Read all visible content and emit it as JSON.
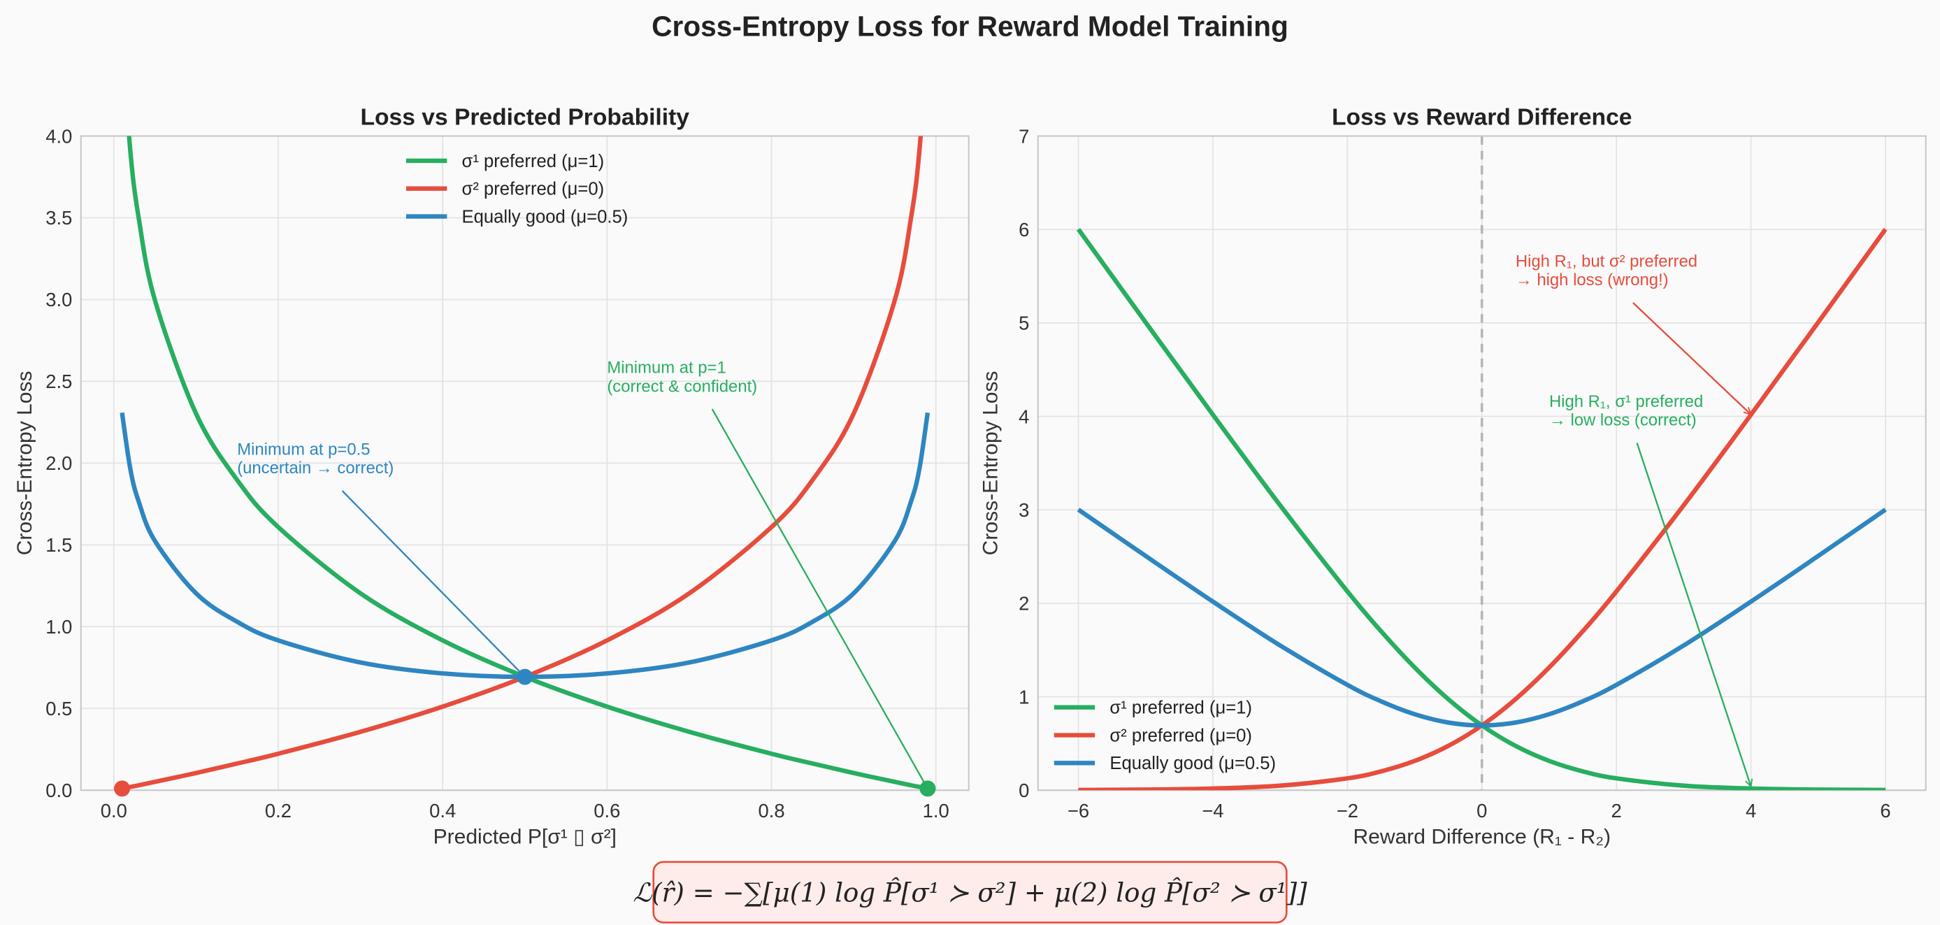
{
  "title": "Cross-Entropy Loss for Reward Model Training",
  "formula": "ℒ(r̂) = −∑[μ(1) log P̂[σ¹ ≻ σ²] + μ(2) log P̂[σ² ≻ σ¹]]",
  "colors": {
    "green": "#27ae60",
    "red": "#e74c3c",
    "blue": "#2e86c1",
    "formula_border": "#e74c3c",
    "formula_bg": "#fdecea"
  },
  "chart_data": [
    {
      "type": "line",
      "title": "Loss vs Predicted Probability",
      "xlabel": "Predicted P[σ¹ ▯ σ²]",
      "ylabel": "Cross-Entropy Loss",
      "xlim": [
        -0.04,
        1.04
      ],
      "ylim": [
        0,
        4
      ],
      "grid": true,
      "legend": "top-center",
      "xticks": [
        "0.0",
        "0.2",
        "0.4",
        "0.6",
        "0.8",
        "1.0"
      ],
      "yticks": [
        "0.0",
        "0.5",
        "1.0",
        "1.5",
        "2.0",
        "2.5",
        "3.0",
        "3.5",
        "4.0"
      ],
      "x": [
        0.01,
        0.02,
        0.03,
        0.05,
        0.1,
        0.15,
        0.2,
        0.3,
        0.4,
        0.5,
        0.6,
        0.7,
        0.8,
        0.85,
        0.9,
        0.95,
        0.97,
        0.98,
        0.99
      ],
      "series": [
        {
          "name": "σ¹ preferred (μ=1)",
          "color": "#27ae60",
          "values": [
            4.605,
            3.912,
            3.507,
            2.996,
            2.303,
            1.897,
            1.609,
            1.204,
            0.916,
            0.693,
            0.511,
            0.357,
            0.223,
            0.163,
            0.105,
            0.051,
            0.03,
            0.02,
            0.01
          ]
        },
        {
          "name": "σ² preferred (μ=0)",
          "color": "#e74c3c",
          "values": [
            0.01,
            0.02,
            0.03,
            0.051,
            0.105,
            0.163,
            0.223,
            0.357,
            0.511,
            0.693,
            0.916,
            1.204,
            1.609,
            1.897,
            2.303,
            2.996,
            3.507,
            3.912,
            4.605
          ]
        },
        {
          "name": "Equally good (μ=0.5)",
          "color": "#2e86c1",
          "values": [
            2.308,
            1.966,
            1.769,
            1.524,
            1.204,
            1.03,
            0.916,
            0.781,
            0.714,
            0.693,
            0.714,
            0.781,
            0.916,
            1.03,
            1.204,
            1.524,
            1.769,
            1.966,
            2.308
          ]
        }
      ],
      "points": [
        {
          "x": 0.5,
          "y": 0.693,
          "color": "#2e86c1"
        },
        {
          "x": 0.01,
          "y": 0.01,
          "color": "#e74c3c"
        },
        {
          "x": 0.99,
          "y": 0.01,
          "color": "#27ae60"
        }
      ],
      "annotations": [
        {
          "lines": [
            "Minimum at p=0.5",
            "(uncertain → correct)"
          ],
          "color": "#2e86c1",
          "text_at": [
            0.15,
            2.05
          ],
          "arrow_to": [
            0.5,
            0.693
          ]
        },
        {
          "lines": [
            "Minimum at p=1",
            "(correct & confident)"
          ],
          "color": "#27ae60",
          "text_at": [
            0.6,
            2.55
          ],
          "arrow_to": [
            0.99,
            0.01
          ]
        }
      ]
    },
    {
      "type": "line",
      "title": "Loss vs Reward Difference",
      "xlabel": "Reward Difference (R₁ - R₂)",
      "ylabel": "Cross-Entropy Loss",
      "xlim": [
        -6.6,
        6.6
      ],
      "ylim": [
        0,
        7
      ],
      "grid": true,
      "legend": "lower-left",
      "xticks": [
        "−6",
        "−4",
        "−2",
        "0",
        "2",
        "4",
        "6"
      ],
      "yticks": [
        "0",
        "1",
        "2",
        "3",
        "4",
        "5",
        "6",
        "7"
      ],
      "vline": 0,
      "x": [
        -6,
        -5,
        -4,
        -3,
        -2,
        -1.5,
        -1,
        -0.5,
        0,
        0.5,
        1,
        1.5,
        2,
        3,
        4,
        5,
        6
      ],
      "series": [
        {
          "name": "σ¹ preferred (μ=1)",
          "color": "#27ae60",
          "values": [
            6.0025,
            5.0067,
            4.0181,
            3.0486,
            2.1269,
            1.7014,
            1.3133,
            0.9741,
            0.6931,
            0.4741,
            0.3133,
            0.2014,
            0.1269,
            0.0486,
            0.0181,
            0.0067,
            0.0025
          ]
        },
        {
          "name": "σ² preferred (μ=0)",
          "color": "#e74c3c",
          "values": [
            0.0025,
            0.0067,
            0.0181,
            0.0486,
            0.1269,
            0.2014,
            0.3133,
            0.4741,
            0.6931,
            0.9741,
            1.3133,
            1.7014,
            2.1269,
            3.0486,
            4.0181,
            5.0067,
            6.0025
          ]
        },
        {
          "name": "Equally good (μ=0.5)",
          "color": "#2e86c1",
          "values": [
            3.0025,
            2.5067,
            2.0181,
            1.5486,
            1.1269,
            0.9514,
            0.8133,
            0.7241,
            0.6931,
            0.7241,
            0.8133,
            0.9514,
            1.1269,
            1.5486,
            2.0181,
            2.5067,
            3.0025
          ]
        }
      ],
      "annotations": [
        {
          "lines": [
            "High R₁, but σ² preferred",
            "→ high loss (wrong!)"
          ],
          "color": "#e74c3c",
          "text_at": [
            0.5,
            5.6
          ],
          "arrow_to": [
            4,
            4.02
          ]
        },
        {
          "lines": [
            "High R₁, σ¹ preferred",
            "→ low loss (correct)"
          ],
          "color": "#27ae60",
          "text_at": [
            1,
            4.1
          ],
          "arrow_to": [
            4,
            0.04
          ]
        }
      ]
    }
  ]
}
